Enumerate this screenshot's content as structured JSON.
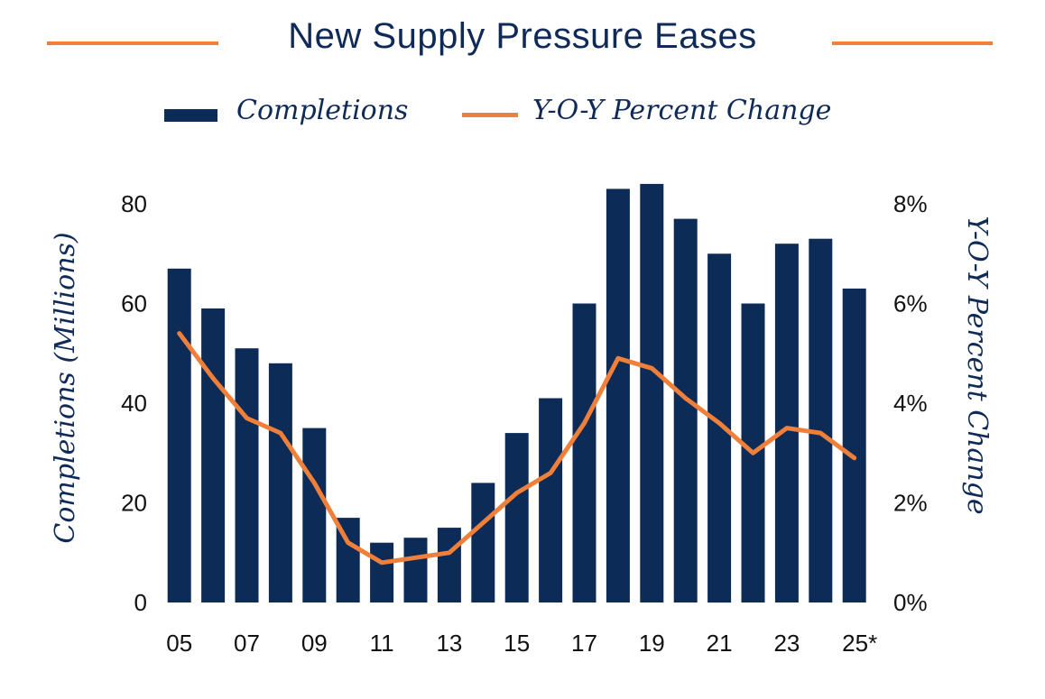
{
  "title": "New Supply Pressure Eases",
  "legend": {
    "bar_label": "Completions",
    "line_label": "Y-O-Y Percent Change"
  },
  "colors": {
    "bar": "#0d2b57",
    "line": "#f07f3a",
    "title": "#0f2a57"
  },
  "chart_data": {
    "type": "bar",
    "title": "New Supply Pressure Eases",
    "categories": [
      "05",
      "06",
      "07",
      "08",
      "09",
      "10",
      "11",
      "12",
      "13",
      "14",
      "15",
      "16",
      "17",
      "18",
      "19",
      "20",
      "21",
      "22",
      "23",
      "24",
      "25*"
    ],
    "tick_labels": [
      "05",
      "07",
      "09",
      "11",
      "13",
      "15",
      "17",
      "19",
      "21",
      "23",
      "25*"
    ],
    "series": [
      {
        "name": "Completions",
        "type": "bar",
        "axis": "left",
        "values": [
          67,
          59,
          51,
          48,
          35,
          17,
          12,
          13,
          15,
          24,
          34,
          41,
          60,
          83,
          84,
          77,
          70,
          60,
          72,
          73,
          63
        ]
      },
      {
        "name": "Y-O-Y Percent Change",
        "type": "line",
        "axis": "right",
        "values": [
          5.4,
          4.5,
          3.7,
          3.4,
          2.4,
          1.2,
          0.8,
          0.9,
          1.0,
          1.6,
          2.2,
          2.6,
          3.6,
          4.9,
          4.7,
          4.1,
          3.6,
          3.0,
          3.5,
          3.4,
          2.9
        ]
      }
    ],
    "ylabel": "Completions (Millions)",
    "ylim": [
      0,
      80
    ],
    "yticks": [
      "0",
      "20",
      "40",
      "60",
      "80"
    ],
    "y2label": "Y-O-Y Percent Change",
    "y2lim": [
      0,
      8
    ],
    "y2ticks": [
      "0%",
      "2%",
      "4%",
      "6%",
      "8%"
    ],
    "grid": false
  }
}
